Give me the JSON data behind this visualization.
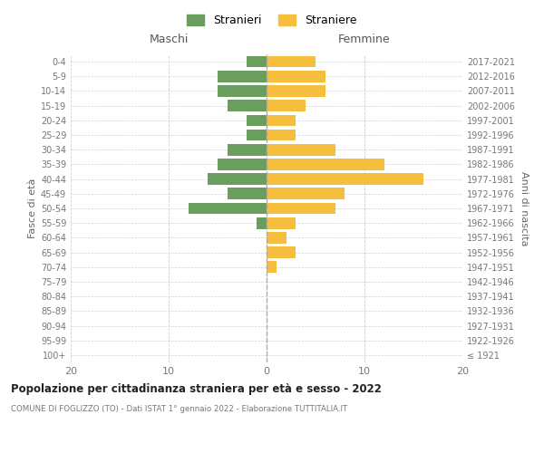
{
  "age_groups": [
    "100+",
    "95-99",
    "90-94",
    "85-89",
    "80-84",
    "75-79",
    "70-74",
    "65-69",
    "60-64",
    "55-59",
    "50-54",
    "45-49",
    "40-44",
    "35-39",
    "30-34",
    "25-29",
    "20-24",
    "15-19",
    "10-14",
    "5-9",
    "0-4"
  ],
  "birth_years": [
    "≤ 1921",
    "1922-1926",
    "1927-1931",
    "1932-1936",
    "1937-1941",
    "1942-1946",
    "1947-1951",
    "1952-1956",
    "1957-1961",
    "1962-1966",
    "1967-1971",
    "1972-1976",
    "1977-1981",
    "1982-1986",
    "1987-1991",
    "1992-1996",
    "1997-2001",
    "2002-2006",
    "2007-2011",
    "2012-2016",
    "2017-2021"
  ],
  "maschi": [
    0,
    0,
    0,
    0,
    0,
    0,
    0,
    0,
    0,
    1,
    8,
    4,
    6,
    5,
    4,
    2,
    2,
    4,
    5,
    5,
    2
  ],
  "femmine": [
    0,
    0,
    0,
    0,
    0,
    0,
    1,
    3,
    2,
    3,
    7,
    8,
    16,
    12,
    7,
    3,
    3,
    4,
    6,
    6,
    5
  ],
  "color_maschi": "#6a9e5e",
  "color_femmine": "#f5be3c",
  "title": "Popolazione per cittadinanza straniera per età e sesso - 2022",
  "subtitle": "COMUNE DI FOGLIZZO (TO) - Dati ISTAT 1° gennaio 2022 - Elaborazione TUTTITALIA.IT",
  "xlabel_left": "Maschi",
  "xlabel_right": "Femmine",
  "ylabel_left": "Fasce di età",
  "ylabel_right": "Anni di nascita",
  "legend_maschi": "Stranieri",
  "legend_femmine": "Straniere",
  "xlim": 20,
  "background_color": "#ffffff",
  "grid_color": "#d0d0d0"
}
